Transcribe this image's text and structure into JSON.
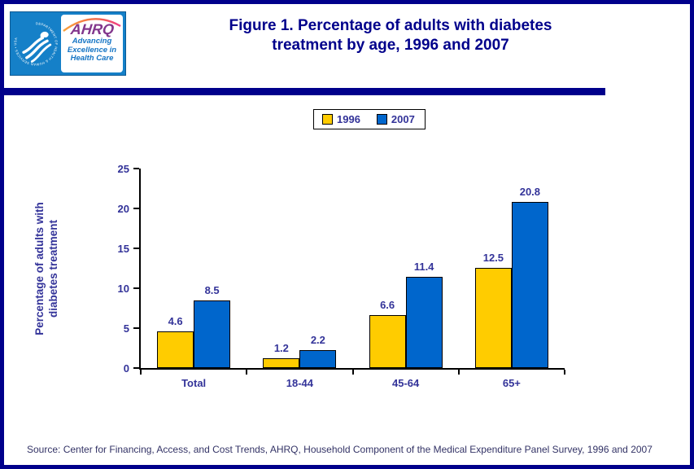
{
  "header": {
    "title_line1": "Figure 1. Percentage of adults with diabetes",
    "title_line2": "treatment by age, 1996 and 2007"
  },
  "logo": {
    "org": "AHRQ",
    "tagline_line1": "Advancing",
    "tagline_line2": "Excellence in",
    "tagline_line3": "Health Care",
    "seal_text": "DEPARTMENT OF HEALTH & HUMAN SERVICES • USA"
  },
  "chart_data": {
    "type": "bar",
    "title": "Figure 1. Percentage of adults with diabetes treatment by age, 1996 and 2007",
    "categories": [
      "Total",
      "18-44",
      "45-64",
      "65+"
    ],
    "series": [
      {
        "name": "1996",
        "color": "#FFCC00",
        "values": [
          4.6,
          1.2,
          6.6,
          12.5
        ]
      },
      {
        "name": "2007",
        "color": "#0066CC",
        "values": [
          8.5,
          2.2,
          11.4,
          20.8
        ]
      }
    ],
    "ylabel_line1": "Percentage of adults with",
    "ylabel_line2": "diabetes treatment",
    "xlabel": "",
    "ylim": [
      0,
      25
    ],
    "yticks": [
      0,
      5,
      10,
      15,
      20,
      25
    ],
    "grid": false,
    "legend_position": "top-center",
    "bar_label_color": "#333399",
    "bar_border_color": "#000000"
  },
  "footer": {
    "source": "Source: Center for Financing, Access, and Cost Trends, AHRQ, Household Component of the Medical Expenditure Panel Survey, 1996 and 2007"
  },
  "colors": {
    "page_border": "#00008B",
    "title_text": "#00008B",
    "divider": "#00008B",
    "axis_label_text": "#333399",
    "footer_text": "#333366",
    "logo_blue": "#1580C8",
    "ahrq_purple": "#82368C",
    "tagline_blue": "#1474C4"
  }
}
